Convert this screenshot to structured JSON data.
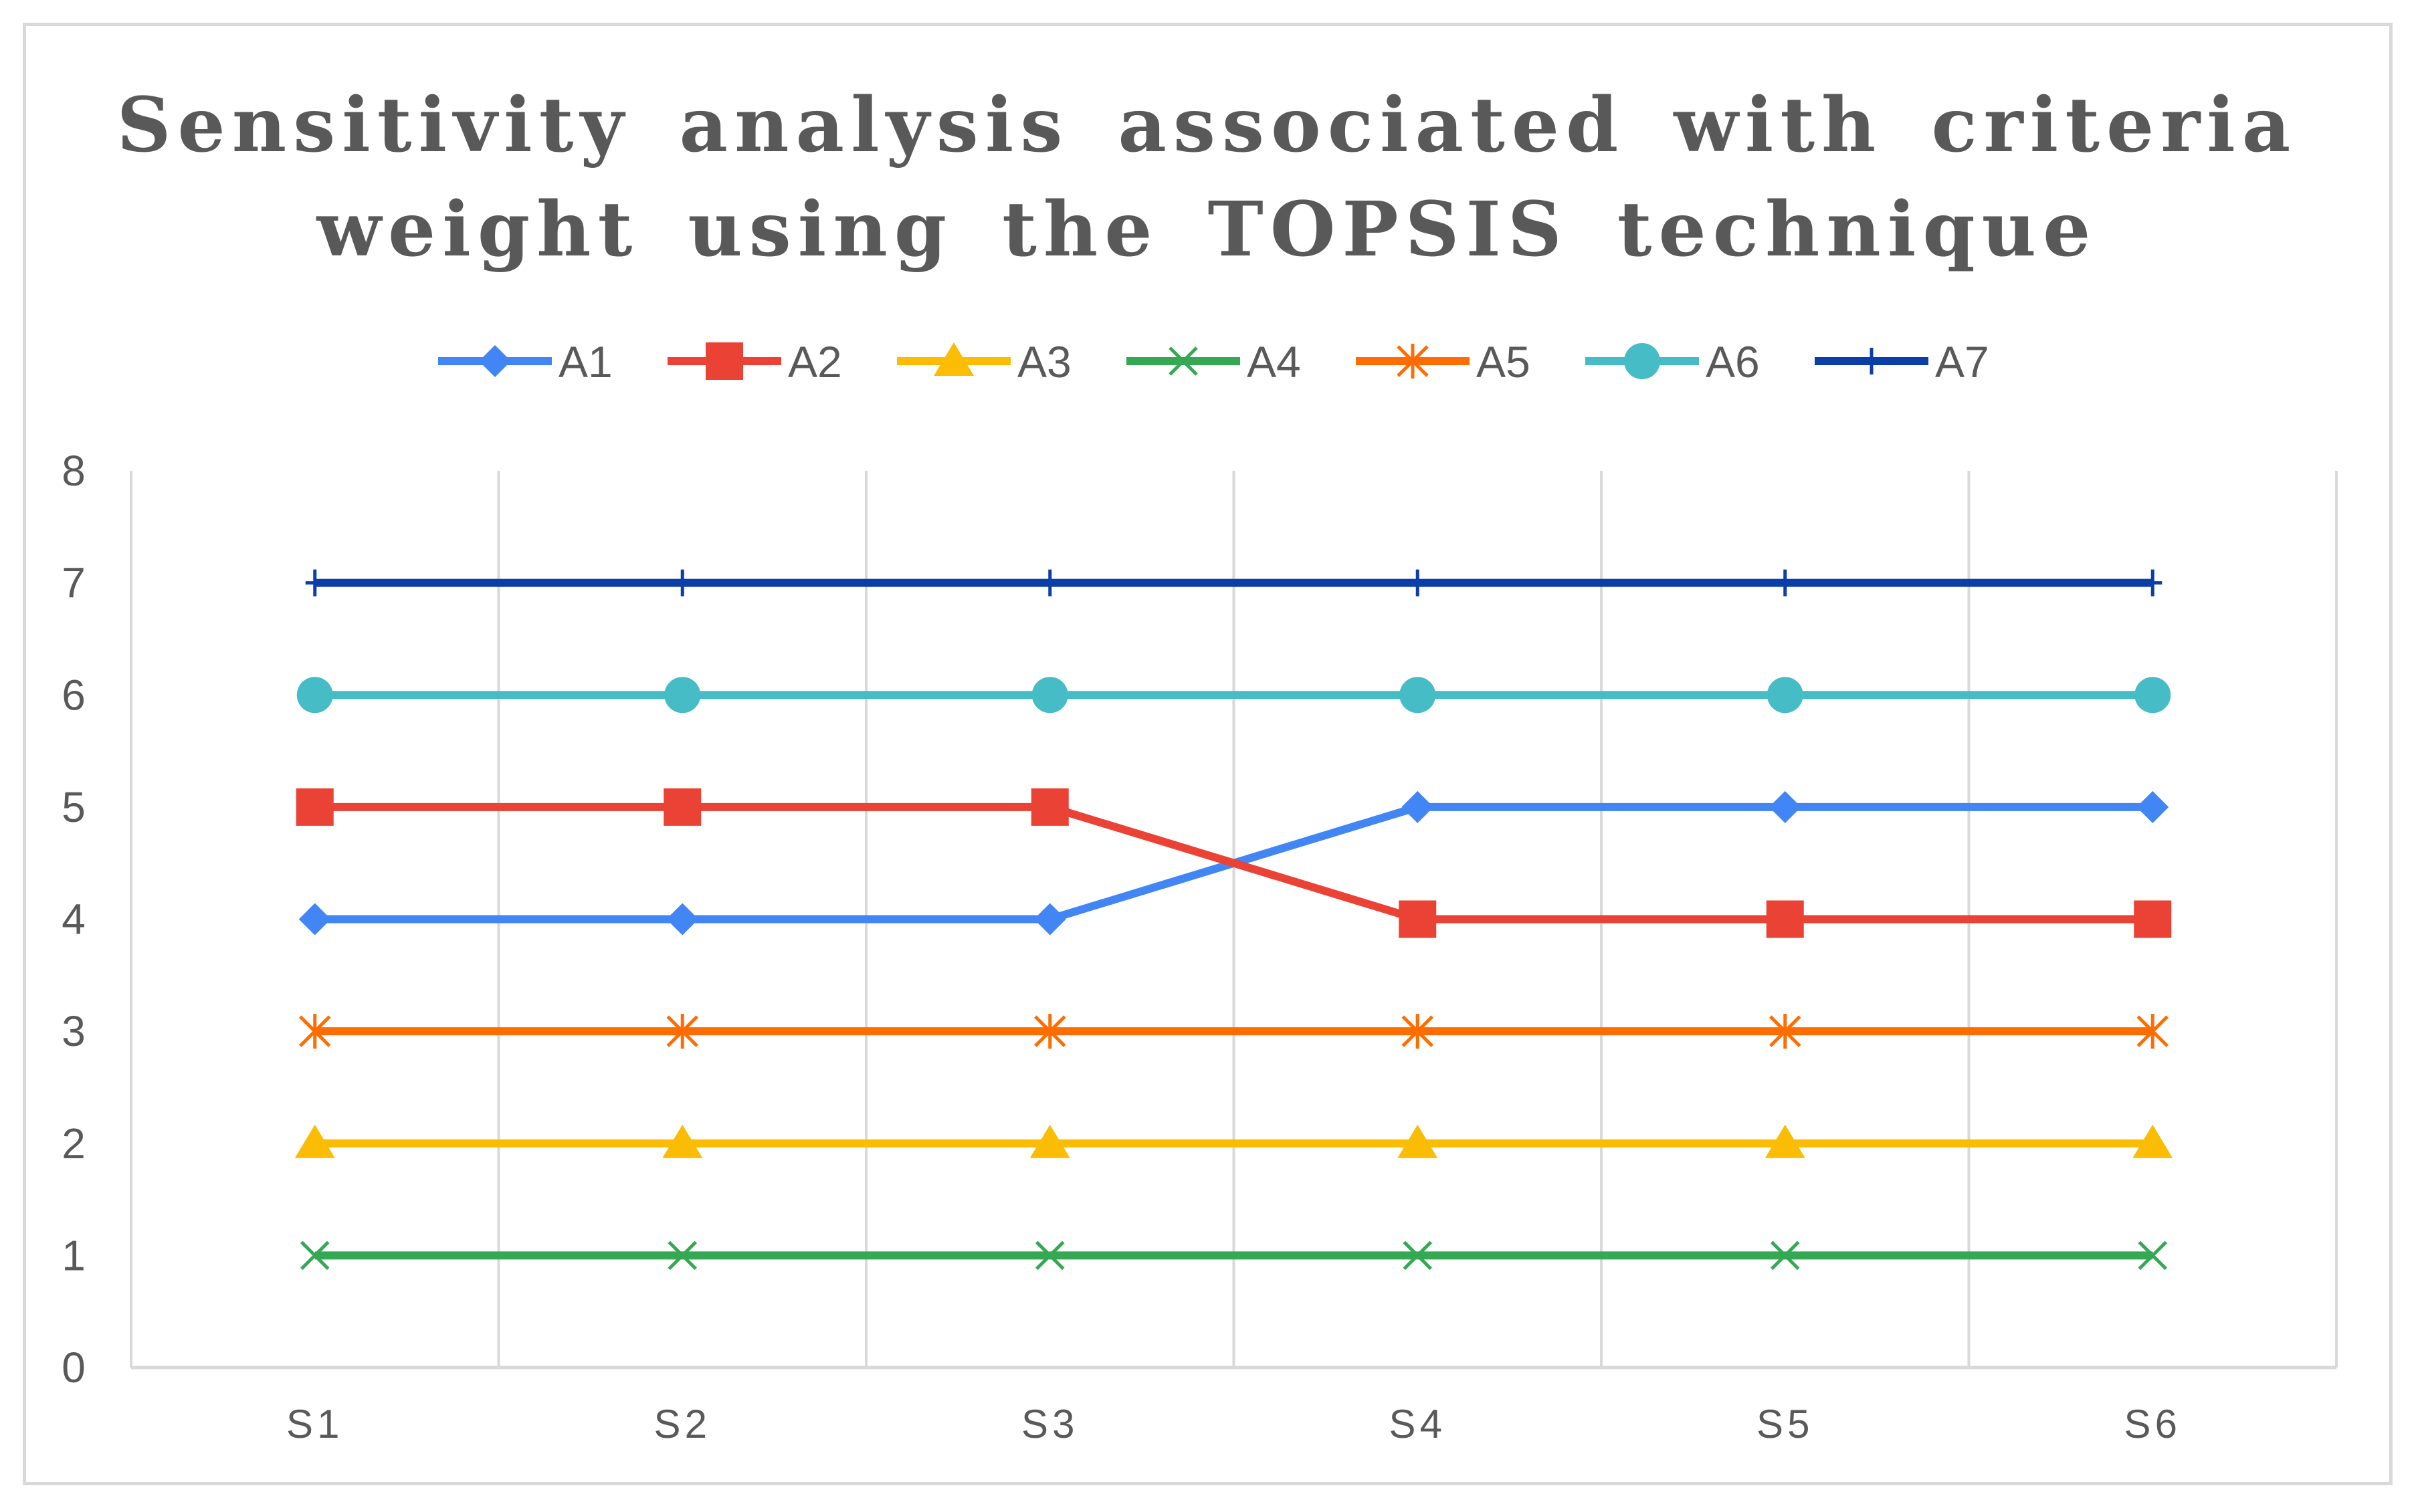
{
  "chart_data": {
    "type": "line",
    "title_lines": [
      "Sensitivity analysis associated with criteria",
      "weight using the TOPSIS technique"
    ],
    "categories": [
      "S1",
      "S2",
      "S3",
      "S4",
      "S5",
      "S6"
    ],
    "ylim": [
      0,
      8
    ],
    "yticks": [
      "0",
      "1",
      "2",
      "3",
      "4",
      "5",
      "6",
      "7",
      "8"
    ],
    "grid": "vertical",
    "legend_position": "top",
    "series": [
      {
        "name": "A1",
        "values": [
          4,
          4,
          4,
          5,
          5,
          5
        ],
        "color": "#4285F4",
        "marker": "diamond"
      },
      {
        "name": "A2",
        "values": [
          5,
          5,
          5,
          4,
          4,
          4
        ],
        "color": "#EA4335",
        "marker": "square"
      },
      {
        "name": "A3",
        "values": [
          2,
          2,
          2,
          2,
          2,
          2
        ],
        "color": "#FBBC04",
        "marker": "triangle"
      },
      {
        "name": "A4",
        "values": [
          1,
          1,
          1,
          1,
          1,
          1
        ],
        "color": "#34A853",
        "marker": "x"
      },
      {
        "name": "A5",
        "values": [
          3,
          3,
          3,
          3,
          3,
          3
        ],
        "color": "#FF6D01",
        "marker": "asterisk"
      },
      {
        "name": "A6",
        "values": [
          6,
          6,
          6,
          6,
          6,
          6
        ],
        "color": "#46BDC6",
        "marker": "circle"
      },
      {
        "name": "A7",
        "values": [
          7,
          7,
          7,
          7,
          7,
          7
        ],
        "color": "#0B3EA8",
        "marker": "plus"
      }
    ]
  }
}
